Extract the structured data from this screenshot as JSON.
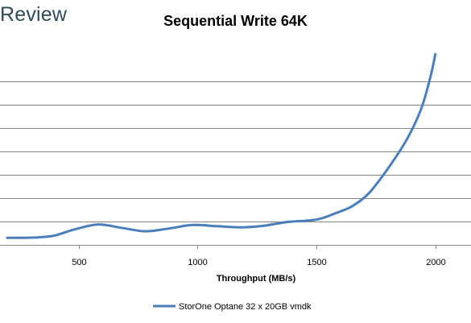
{
  "brand": {
    "logo_text": "Review"
  },
  "chart_data": {
    "type": "line",
    "title": "Sequential Write 64K",
    "xlabel": "Throughput (MB/s)",
    "ylabel": "",
    "xlim": [
      170,
      2150
    ],
    "ylim": [
      0,
      8.5
    ],
    "x_ticks": [
      500,
      1000,
      1500,
      2000
    ],
    "y_gridlines": [
      1,
      2,
      3,
      4,
      5,
      6,
      7
    ],
    "y_tick_labels_visible": false,
    "grid": "horizontal",
    "legend": "bottom",
    "series": [
      {
        "name": "StorOne Optane 32 x 20GB vmdk",
        "color": "#4a7ebb",
        "x": [
          200,
          330,
          400,
          480,
          580,
          680,
          780,
          880,
          980,
          1080,
          1180,
          1280,
          1380,
          1500,
          1580,
          1650,
          1720,
          1800,
          1880,
          1940,
          1980,
          2000
        ],
        "y": [
          0.3,
          0.32,
          0.4,
          0.65,
          0.87,
          0.73,
          0.58,
          0.7,
          0.85,
          0.8,
          0.75,
          0.82,
          0.98,
          1.08,
          1.35,
          1.65,
          2.2,
          3.25,
          4.5,
          5.8,
          7.2,
          8.15
        ]
      }
    ]
  }
}
